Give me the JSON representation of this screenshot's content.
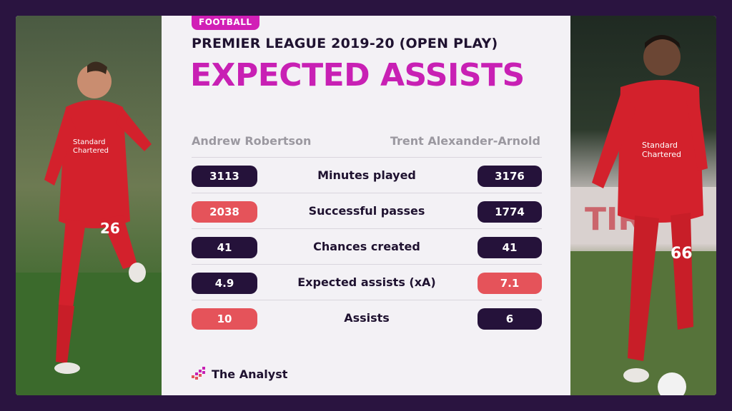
{
  "badge": "FOOTBALL",
  "subtitle": "PREMIER LEAGUE 2019-20 (OPEN PLAY)",
  "title": "EXPECTED ASSISTS",
  "players": {
    "left_name": "Andrew Robertson",
    "right_name": "Trent Alexander-Arnold"
  },
  "rows": [
    {
      "metric": "Minutes played",
      "left": "3113",
      "right": "3176",
      "left_color": "dark",
      "right_color": "dark"
    },
    {
      "metric": "Successful passes",
      "left": "2038",
      "right": "1774",
      "left_color": "red",
      "right_color": "dark"
    },
    {
      "metric": "Chances created",
      "left": "41",
      "right": "41",
      "left_color": "dark",
      "right_color": "dark"
    },
    {
      "metric": "Expected assists (xA)",
      "left": "4.9",
      "right": "7.1",
      "left_color": "dark",
      "right_color": "red"
    },
    {
      "metric": "Assists",
      "left": "10",
      "right": "6",
      "left_color": "red",
      "right_color": "dark"
    }
  ],
  "logo_text": "The Analyst",
  "colors": {
    "background": "#2a1440",
    "accent": "#c820b4",
    "highlight": "#e5535a",
    "dark_pill": "#25123a"
  },
  "images": {
    "left_photo": "robertson-player-photo",
    "right_photo": "alexander-arnold-player-photo"
  }
}
